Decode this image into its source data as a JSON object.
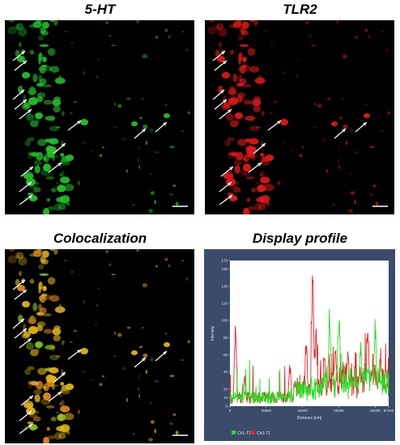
{
  "panels": {
    "serotonin": {
      "title": "5-HT",
      "color": "#22c22a"
    },
    "tlr2": {
      "title": "TLR2",
      "color": "#e01818"
    },
    "coloc": {
      "title": "Colocalization",
      "color": "#e0b418"
    },
    "profile": {
      "title": "Display profile"
    }
  },
  "chart_data": {
    "type": "line",
    "xlabel": "Distance [nm]",
    "ylabel": "Intensity",
    "xlim": [
      0,
      87433
    ],
    "ylim": [
      0,
      170
    ],
    "x_ticks": [
      "0",
      "20000",
      "40000",
      "60000",
      "80000",
      "87433"
    ],
    "y_ticks": [
      "0",
      "10",
      "20",
      "40",
      "60",
      "80",
      "100",
      "120",
      "140",
      "160",
      "170"
    ],
    "series": [
      {
        "name": "Ch1-T1",
        "color": "#22dd22"
      },
      {
        "name": "Ch2-T2",
        "color": "#ee2222"
      }
    ],
    "peaks": [
      {
        "series": "Ch2-T2",
        "x": 3000,
        "y": 90
      },
      {
        "series": "Ch2-T2",
        "x": 8000,
        "y": 35
      },
      {
        "series": "Ch2-T2",
        "x": 33000,
        "y": 50
      },
      {
        "series": "Ch2-T2",
        "x": 36000,
        "y": 30
      },
      {
        "series": "Ch2-T2",
        "x": 42000,
        "y": 80
      },
      {
        "series": "Ch2-T2",
        "x": 45500,
        "y": 160
      },
      {
        "series": "Ch2-T2",
        "x": 47500,
        "y": 95
      },
      {
        "series": "Ch2-T2",
        "x": 52000,
        "y": 60
      },
      {
        "series": "Ch1-T1",
        "x": 55000,
        "y": 118
      },
      {
        "series": "Ch1-T1",
        "x": 60000,
        "y": 112
      },
      {
        "series": "Ch2-T2",
        "x": 58000,
        "y": 80
      },
      {
        "series": "Ch2-T2",
        "x": 65000,
        "y": 70
      },
      {
        "series": "Ch1-T1",
        "x": 72000,
        "y": 80
      },
      {
        "series": "Ch2-T2",
        "x": 76000,
        "y": 88
      },
      {
        "series": "Ch1-T1",
        "x": 80000,
        "y": 100
      },
      {
        "series": "Ch2-T2",
        "x": 83000,
        "y": 58
      }
    ]
  }
}
